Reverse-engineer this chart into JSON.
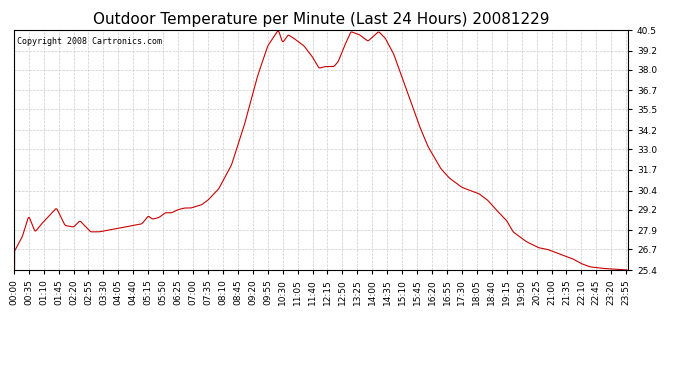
{
  "title": "Outdoor Temperature per Minute (Last 24 Hours) 20081229",
  "copyright_text": "Copyright 2008 Cartronics.com",
  "line_color": "#cc0000",
  "background_color": "#ffffff",
  "grid_color": "#cccccc",
  "ylim": [
    25.4,
    40.5
  ],
  "yticks": [
    25.4,
    26.7,
    27.9,
    29.2,
    30.4,
    31.7,
    33.0,
    34.2,
    35.5,
    36.7,
    38.0,
    39.2,
    40.5
  ],
  "title_fontsize": 11,
  "axis_fontsize": 6.5,
  "copyright_fontsize": 6,
  "keypoints": [
    [
      0,
      26.5
    ],
    [
      20,
      27.5
    ],
    [
      35,
      28.8
    ],
    [
      50,
      27.8
    ],
    [
      65,
      28.3
    ],
    [
      100,
      29.3
    ],
    [
      120,
      28.2
    ],
    [
      140,
      28.1
    ],
    [
      155,
      28.5
    ],
    [
      180,
      27.8
    ],
    [
      200,
      27.8
    ],
    [
      220,
      27.9
    ],
    [
      240,
      28.0
    ],
    [
      260,
      28.1
    ],
    [
      300,
      28.3
    ],
    [
      315,
      28.8
    ],
    [
      325,
      28.6
    ],
    [
      340,
      28.7
    ],
    [
      355,
      29.0
    ],
    [
      370,
      29.0
    ],
    [
      385,
      29.2
    ],
    [
      400,
      29.3
    ],
    [
      415,
      29.3
    ],
    [
      440,
      29.5
    ],
    [
      455,
      29.8
    ],
    [
      480,
      30.5
    ],
    [
      510,
      32.0
    ],
    [
      540,
      34.5
    ],
    [
      570,
      37.5
    ],
    [
      595,
      39.5
    ],
    [
      620,
      40.5
    ],
    [
      630,
      39.7
    ],
    [
      643,
      40.2
    ],
    [
      655,
      40.0
    ],
    [
      665,
      39.8
    ],
    [
      680,
      39.5
    ],
    [
      700,
      38.8
    ],
    [
      715,
      38.1
    ],
    [
      730,
      38.2
    ],
    [
      750,
      38.2
    ],
    [
      760,
      38.5
    ],
    [
      775,
      39.5
    ],
    [
      790,
      40.4
    ],
    [
      810,
      40.2
    ],
    [
      830,
      39.8
    ],
    [
      855,
      40.4
    ],
    [
      870,
      40.0
    ],
    [
      890,
      39.0
    ],
    [
      910,
      37.5
    ],
    [
      930,
      36.0
    ],
    [
      950,
      34.5
    ],
    [
      970,
      33.2
    ],
    [
      985,
      32.5
    ],
    [
      1000,
      31.8
    ],
    [
      1020,
      31.2
    ],
    [
      1050,
      30.6
    ],
    [
      1070,
      30.4
    ],
    [
      1090,
      30.2
    ],
    [
      1110,
      29.8
    ],
    [
      1130,
      29.2
    ],
    [
      1155,
      28.5
    ],
    [
      1170,
      27.8
    ],
    [
      1200,
      27.2
    ],
    [
      1230,
      26.8
    ],
    [
      1250,
      26.7
    ],
    [
      1270,
      26.5
    ],
    [
      1290,
      26.3
    ],
    [
      1310,
      26.1
    ],
    [
      1330,
      25.8
    ],
    [
      1350,
      25.6
    ],
    [
      1380,
      25.5
    ],
    [
      1439,
      25.4
    ]
  ]
}
